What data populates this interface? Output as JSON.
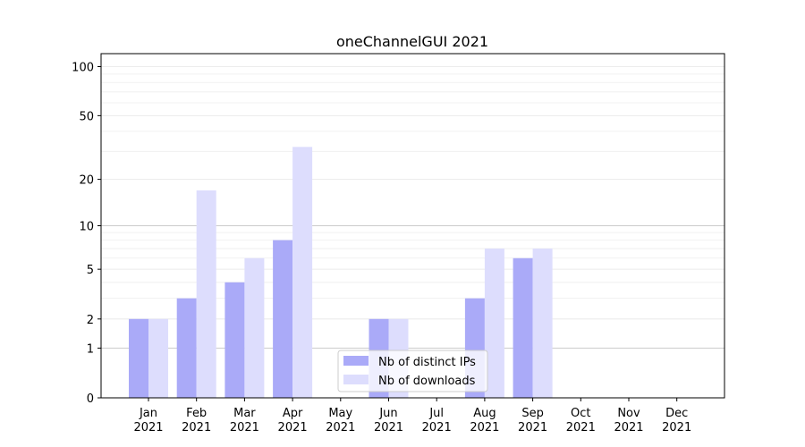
{
  "chart_data": {
    "type": "bar",
    "title": "oneChannelGUI 2021",
    "xlabel": "",
    "ylabel": "",
    "y_scale": "log(1+y)",
    "ylim": [
      0,
      120
    ],
    "y_ticks": [
      0,
      1,
      2,
      5,
      10,
      20,
      50,
      100
    ],
    "y_tick_labels": [
      "0",
      "1",
      "2",
      "5",
      "10",
      "20",
      "50",
      "100"
    ],
    "grid": "horizontal",
    "legend_position": "bottom-center",
    "categories": [
      {
        "month": "Jan",
        "year": "2021"
      },
      {
        "month": "Feb",
        "year": "2021"
      },
      {
        "month": "Mar",
        "year": "2021"
      },
      {
        "month": "Apr",
        "year": "2021"
      },
      {
        "month": "May",
        "year": "2021"
      },
      {
        "month": "Jun",
        "year": "2021"
      },
      {
        "month": "Jul",
        "year": "2021"
      },
      {
        "month": "Aug",
        "year": "2021"
      },
      {
        "month": "Sep",
        "year": "2021"
      },
      {
        "month": "Oct",
        "year": "2021"
      },
      {
        "month": "Nov",
        "year": "2021"
      },
      {
        "month": "Dec",
        "year": "2021"
      }
    ],
    "series": [
      {
        "name": "Nb of distinct IPs",
        "color": "#aaaaf8",
        "values": [
          2,
          3,
          4,
          8,
          0,
          2,
          0,
          3,
          6,
          0,
          0,
          0
        ]
      },
      {
        "name": "Nb of downloads",
        "color": "#ddddfd",
        "values": [
          2,
          17,
          6,
          32,
          0,
          2,
          0,
          7,
          7,
          0,
          0,
          0
        ]
      }
    ]
  }
}
